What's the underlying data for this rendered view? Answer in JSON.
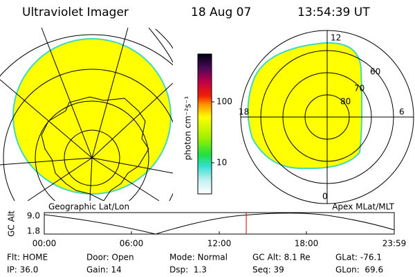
{
  "header": {
    "title": "Ultraviolet Imager",
    "date": "18 Aug 07",
    "time": "13:54:39 UT"
  },
  "colorbar": {
    "label": "photon cm⁻²s⁻¹",
    "ticks": [
      "100",
      "10"
    ]
  },
  "polar_plot": {
    "mlt_labels": [
      "12",
      "18",
      "6",
      "0"
    ],
    "lat_labels": [
      "60",
      "70",
      "80"
    ]
  },
  "map_titles": {
    "left": "Geographic Lat/Lon",
    "right": "Apex MLat/MLT"
  },
  "altitude_plot": {
    "axis_label": "GC Alt",
    "y_ticks": [
      "9.0",
      "1.8"
    ],
    "x_ticks": [
      "00:00",
      "06:00",
      "12:00",
      "18:00",
      "23:59"
    ]
  },
  "status": [
    [
      "Flt: HOME",
      "Door: Open",
      "Mode: Normal",
      "GC Alt: 8.1 Re",
      "GLat: -76.1"
    ],
    [
      "IP: 36.0",
      "Gain: 14",
      "Dsp:  1.3",
      "Seq: 39",
      "GLon:  69.6"
    ]
  ]
}
